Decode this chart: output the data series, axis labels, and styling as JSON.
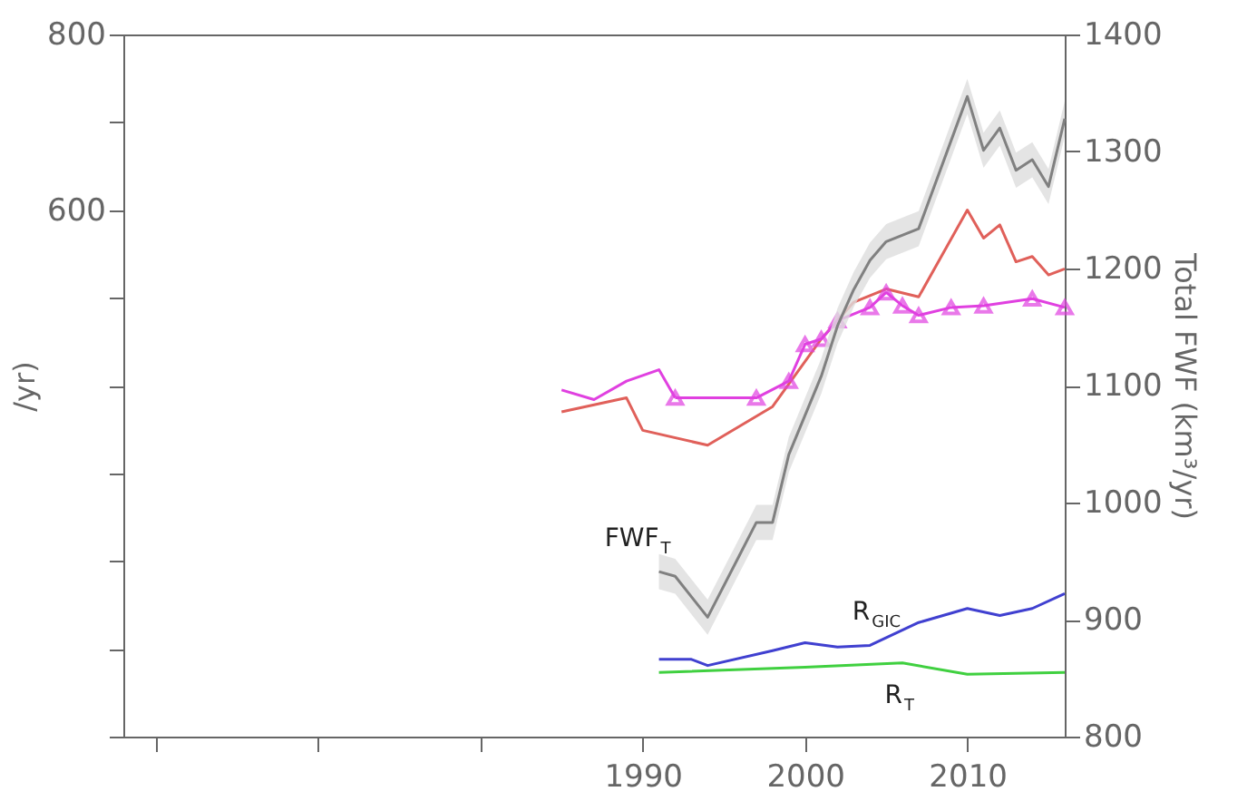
{
  "chart_data": {
    "type": "line",
    "ylabel": "/yr)",
    "y2label": "Total FWF (km³/yr)",
    "xlim": [
      1958,
      2016
    ],
    "xticks": [
      {
        "value": 1960,
        "label": null
      },
      {
        "value": 1970,
        "label": null
      },
      {
        "value": 1980,
        "label": null
      },
      1990,
      2000,
      2010
    ],
    "ylim": [
      0,
      800
    ],
    "yticks": [
      {
        "value": 0,
        "label": null
      },
      {
        "value": 100,
        "label": null
      },
      {
        "value": 200,
        "label": null
      },
      {
        "value": 300,
        "label": null
      },
      {
        "value": 400,
        "label": null
      },
      {
        "value": 500,
        "label": null
      },
      600,
      {
        "value": 700,
        "label": null
      },
      800
    ],
    "y2lim": [
      800,
      1400
    ],
    "y2ticks": [
      800,
      900,
      1000,
      1100,
      1200,
      1300,
      1400
    ],
    "grid": false,
    "line_style": "solid",
    "series": [
      {
        "color": "#e0605a",
        "marker": "none",
        "x": [
          1985,
          1989,
          1990,
          1994,
          1998,
          2001,
          2003,
          2005,
          2007,
          2010,
          2011,
          2012,
          2013,
          2014,
          2015,
          2016
        ],
        "values": [
          370,
          386,
          349,
          332,
          376,
          453,
          495,
          510,
          501,
          600,
          568,
          583,
          541,
          547,
          526,
          533
        ]
      },
      {
        "color": "#e040e0",
        "marker": "none",
        "x": [
          1985,
          1987,
          1989,
          1991,
          1992
        ],
        "values": [
          395,
          384,
          405,
          418,
          386
        ]
      },
      {
        "color": "#e040e0",
        "marker": "triangle",
        "x": [
          1992,
          1997,
          1999,
          2000,
          2001,
          2002,
          2004,
          2005,
          2006,
          2007,
          2009,
          2011,
          2014,
          2016
        ],
        "values": [
          386,
          386,
          405,
          447,
          453,
          474,
          489,
          506,
          491,
          480,
          489,
          491,
          499,
          489
        ]
      },
      {
        "name": "FWF$_{T}$",
        "color": "#808080",
        "marker": "none",
        "axis": "y2",
        "x": [
          1991,
          1992,
          1994,
          1996,
          1997,
          1998,
          1999,
          2001,
          2002,
          2003,
          2004,
          2005,
          2007,
          2010,
          2011,
          2012,
          2013,
          2014,
          2015,
          2016
        ],
        "values": [
          941,
          937,
          902,
          956,
          983,
          983,
          1041,
          1108,
          1151,
          1182,
          1207,
          1223,
          1234,
          1347,
          1301,
          1320,
          1284,
          1293,
          1270,
          1328
        ],
        "lower": [
          926,
          922,
          887,
          941,
          968,
          968,
          1026,
          1093,
          1136,
          1167,
          1192,
          1208,
          1219,
          1332,
          1286,
          1305,
          1269,
          1278,
          1255,
          1313
        ],
        "upper": [
          956,
          952,
          917,
          971,
          998,
          998,
          1056,
          1123,
          1166,
          1197,
          1222,
          1238,
          1249,
          1362,
          1316,
          1335,
          1299,
          1308,
          1285,
          1343
        ]
      },
      {
        "name": "R$_{GIC}$",
        "color": "#4040d0",
        "marker": "none",
        "x": [
          1991,
          1993,
          1994,
          1998,
          2000,
          2002,
          2004,
          2007,
          2010,
          2012,
          2014,
          2016
        ],
        "values": [
          88,
          88,
          81,
          98,
          107,
          102,
          104,
          130,
          146,
          138,
          146,
          163
        ]
      },
      {
        "name": "R$_{T}$",
        "color": "#40d040",
        "marker": "none",
        "x": [
          1991,
          2000,
          2006,
          2010,
          2016
        ],
        "values": [
          73,
          79,
          84,
          71,
          73
        ]
      }
    ]
  }
}
